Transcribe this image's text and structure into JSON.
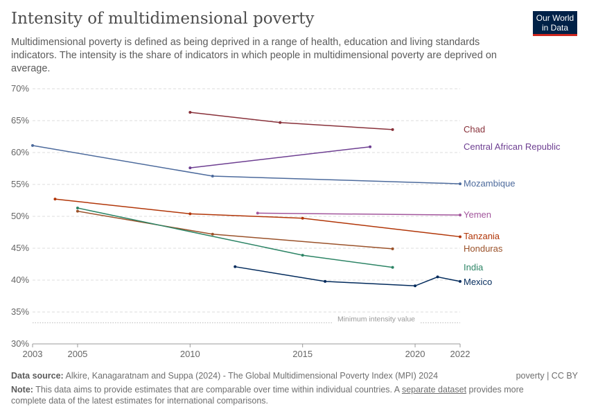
{
  "header": {
    "title": "Intensity of multidimensional poverty",
    "subtitle": "Multidimensional poverty is defined as being deprived in a range of health, education and living standards indicators. The intensity is the share of indicators in which people in multidimensional poverty are deprived on average.",
    "logo": "Our World in Data"
  },
  "chart_data": {
    "type": "line",
    "title": "Intensity of multidimensional poverty",
    "ylim": [
      30,
      70
    ],
    "xlim": [
      2003,
      2022
    ],
    "yticks": [
      "30%",
      "35%",
      "40%",
      "45%",
      "50%",
      "55%",
      "60%",
      "65%",
      "70%"
    ],
    "ytick_values": [
      30,
      35,
      40,
      45,
      50,
      55,
      60,
      65,
      70
    ],
    "xticks": [
      "2003",
      "2005",
      "2010",
      "2015",
      "2020",
      "2022"
    ],
    "xtick_values": [
      2003,
      2005,
      2010,
      2015,
      2020,
      2022
    ],
    "grid": "horizontal dashed",
    "legend": "right, end labels",
    "reference_line": {
      "label": "Minimum intensity value",
      "value": 33.3
    },
    "series": [
      {
        "name": "Chad",
        "color": "#883039",
        "points": [
          [
            2010,
            66.3
          ],
          [
            2014,
            64.7
          ],
          [
            2019,
            63.6
          ]
        ]
      },
      {
        "name": "Central African Republic",
        "color": "#6d3e91",
        "points": [
          [
            2010,
            57.6
          ],
          [
            2018,
            60.9
          ]
        ]
      },
      {
        "name": "Mozambique",
        "color": "#4c6a9c",
        "points": [
          [
            2003,
            61.1
          ],
          [
            2011,
            56.3
          ],
          [
            2022,
            55.1
          ]
        ]
      },
      {
        "name": "Yemen",
        "color": "#a2559c",
        "points": [
          [
            2013,
            50.5
          ],
          [
            2022,
            50.2
          ]
        ]
      },
      {
        "name": "Tanzania",
        "color": "#b13507",
        "points": [
          [
            2004,
            52.7
          ],
          [
            2010,
            50.4
          ],
          [
            2015,
            49.7
          ],
          [
            2022,
            46.8
          ]
        ]
      },
      {
        "name": "Honduras",
        "color": "#9a5129",
        "points": [
          [
            2005,
            50.8
          ],
          [
            2011,
            47.2
          ],
          [
            2019,
            44.9
          ]
        ]
      },
      {
        "name": "India",
        "color": "#2c8465",
        "points": [
          [
            2005,
            51.3
          ],
          [
            2015,
            43.9
          ],
          [
            2019,
            42.0
          ]
        ]
      },
      {
        "name": "Mexico",
        "color": "#00295b",
        "points": [
          [
            2012,
            42.1
          ],
          [
            2016,
            39.8
          ],
          [
            2020,
            39.1
          ],
          [
            2021,
            40.5
          ],
          [
            2022,
            39.8
          ]
        ]
      }
    ]
  },
  "footer": {
    "source_label": "Data source:",
    "source": "Alkire, Kanagaratnam and Suppa (2024) - The Global Multidimensional Poverty Index (MPI) 2024",
    "license": "poverty | CC BY",
    "note_label": "Note:",
    "note_a": "This data aims to provide estimates that are comparable over time within individual countries. A ",
    "note_link": "separate dataset",
    "note_b": " provides more complete data of the latest estimates for international comparisons."
  }
}
